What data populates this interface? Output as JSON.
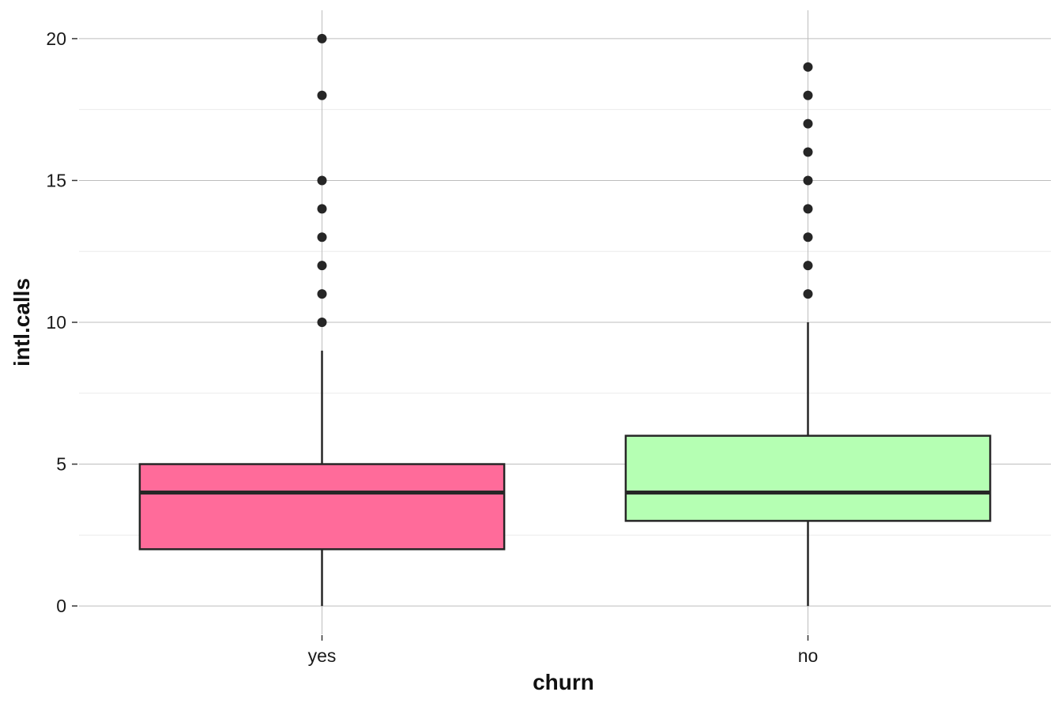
{
  "chart_data": {
    "type": "box",
    "xlabel": "churn",
    "ylabel": "intl.calls",
    "ylim": [
      -1.0,
      21.0
    ],
    "y_ticks": [
      0,
      5,
      10,
      15,
      20
    ],
    "y_minor_ticks": [
      2.5,
      7.5,
      12.5,
      17.5
    ],
    "grid": true,
    "legend": "none",
    "categories": [
      "yes",
      "no"
    ],
    "boxes": [
      {
        "category": "yes",
        "whisker_low": 0,
        "q1": 2,
        "median": 4,
        "q3": 5,
        "whisker_high": 9,
        "outliers": [
          10,
          11,
          12,
          13,
          14,
          15,
          18,
          20
        ],
        "fill": "#ff6b9a"
      },
      {
        "category": "no",
        "whisker_low": 0,
        "q1": 3,
        "median": 4,
        "q3": 6,
        "whisker_high": 10,
        "outliers": [
          11,
          12,
          13,
          14,
          15,
          16,
          17,
          18,
          19
        ],
        "fill": "#b5ffb3"
      }
    ]
  }
}
